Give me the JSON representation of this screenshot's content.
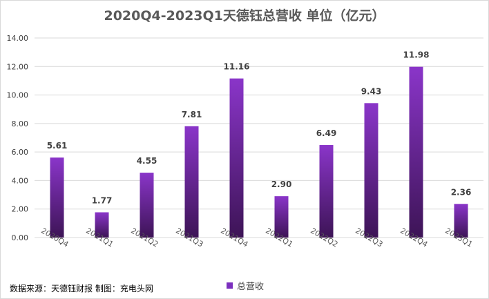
{
  "chart_data": {
    "type": "bar",
    "title": "2020Q4-2023Q1天德钰总营收 单位（亿元）",
    "categories": [
      "2020Q4",
      "2021Q1",
      "2021Q2",
      "2021Q3",
      "2021Q4",
      "2022Q1",
      "2022Q2",
      "2022Q3",
      "2022Q4",
      "2023Q1"
    ],
    "series": [
      {
        "name": "总营收",
        "values": [
          5.61,
          1.77,
          4.55,
          7.81,
          11.16,
          2.9,
          6.49,
          9.43,
          11.98,
          2.36
        ]
      }
    ],
    "value_labels": [
      "5.61",
      "1.77",
      "4.55",
      "7.81",
      "11.16",
      "2.90",
      "6.49",
      "9.43",
      "11.98",
      "2.36"
    ],
    "ylim": [
      0,
      14
    ],
    "yticks": [
      "0.00",
      "2.00",
      "4.00",
      "6.00",
      "8.00",
      "10.00",
      "12.00",
      "14.00"
    ],
    "grid": true,
    "legend_position": "bottom",
    "colors": {
      "bar_top": "#8a35c9",
      "bar_bottom": "#3d1456",
      "grid": "#d9d9d9"
    }
  },
  "footer": {
    "source": "数据来源：天德钰财报 制图：充电头网"
  }
}
